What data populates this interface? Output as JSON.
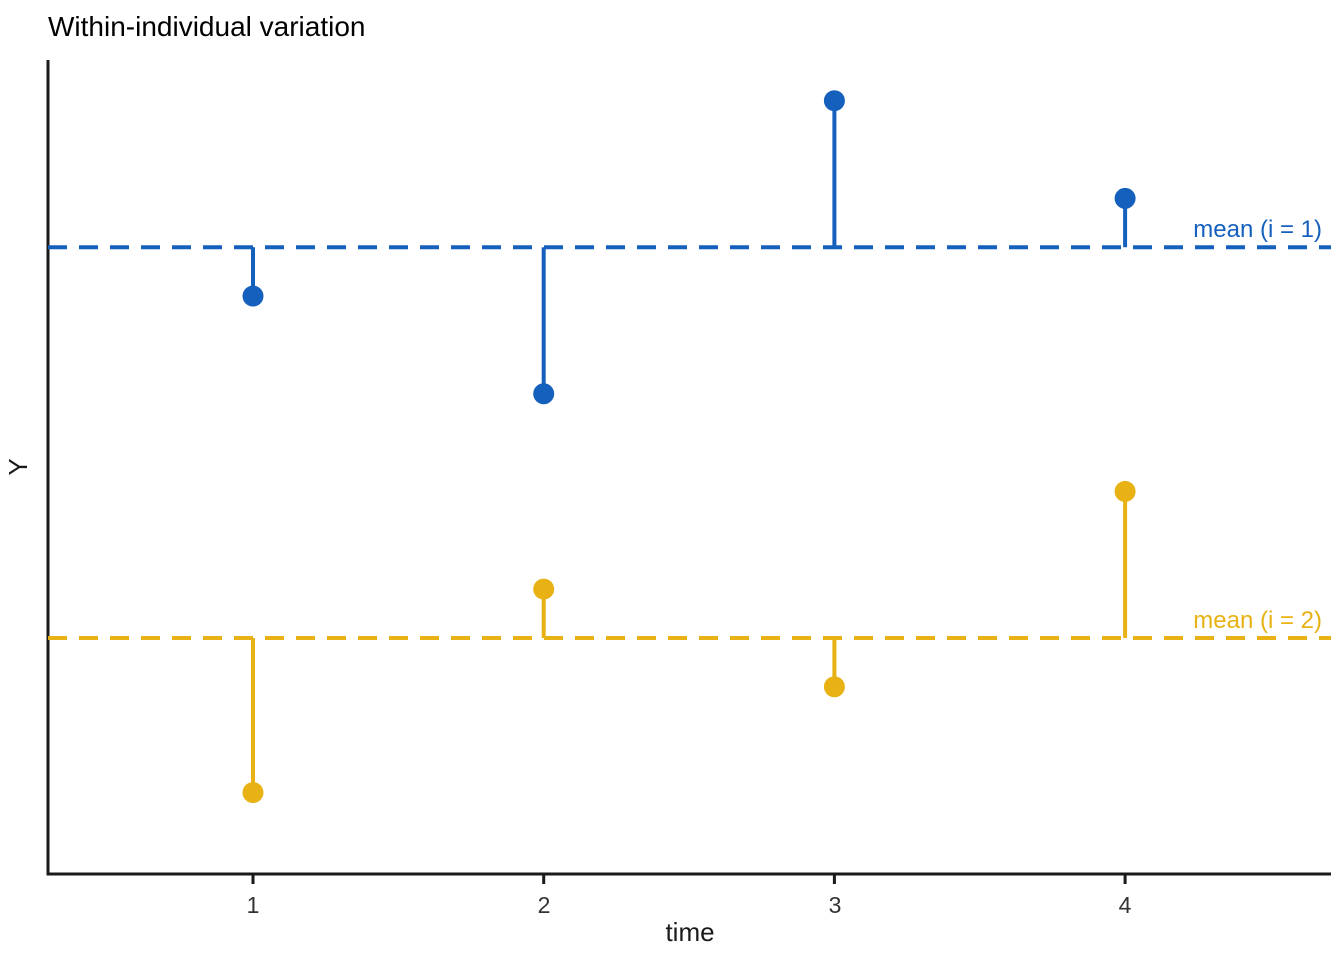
{
  "chart_data": {
    "type": "scatter",
    "title": "Within-individual variation",
    "xlabel": "time",
    "ylabel": "Y",
    "x": [
      1,
      2,
      3,
      4
    ],
    "xlim": [
      0.3,
      4.7
    ],
    "ylim": [
      0,
      1
    ],
    "grid": "off",
    "legend": "none",
    "y_tick_labels": [],
    "mark": "point with vertical segment to individual mean (dashed hline)",
    "series": [
      {
        "name": "individual i = 1",
        "color": "#1560BD",
        "mean": 0.77,
        "mean_label": "mean (i = 1)",
        "points": [
          {
            "x": 1,
            "y": 0.71
          },
          {
            "x": 2,
            "y": 0.59
          },
          {
            "x": 3,
            "y": 0.95
          },
          {
            "x": 4,
            "y": 0.83
          }
        ]
      },
      {
        "name": "individual i = 2",
        "color": "#E8B214",
        "mean": 0.29,
        "mean_label": "mean (i = 2)",
        "points": [
          {
            "x": 1,
            "y": 0.1
          },
          {
            "x": 2,
            "y": 0.35
          },
          {
            "x": 3,
            "y": 0.23
          },
          {
            "x": 4,
            "y": 0.47
          }
        ]
      }
    ]
  }
}
